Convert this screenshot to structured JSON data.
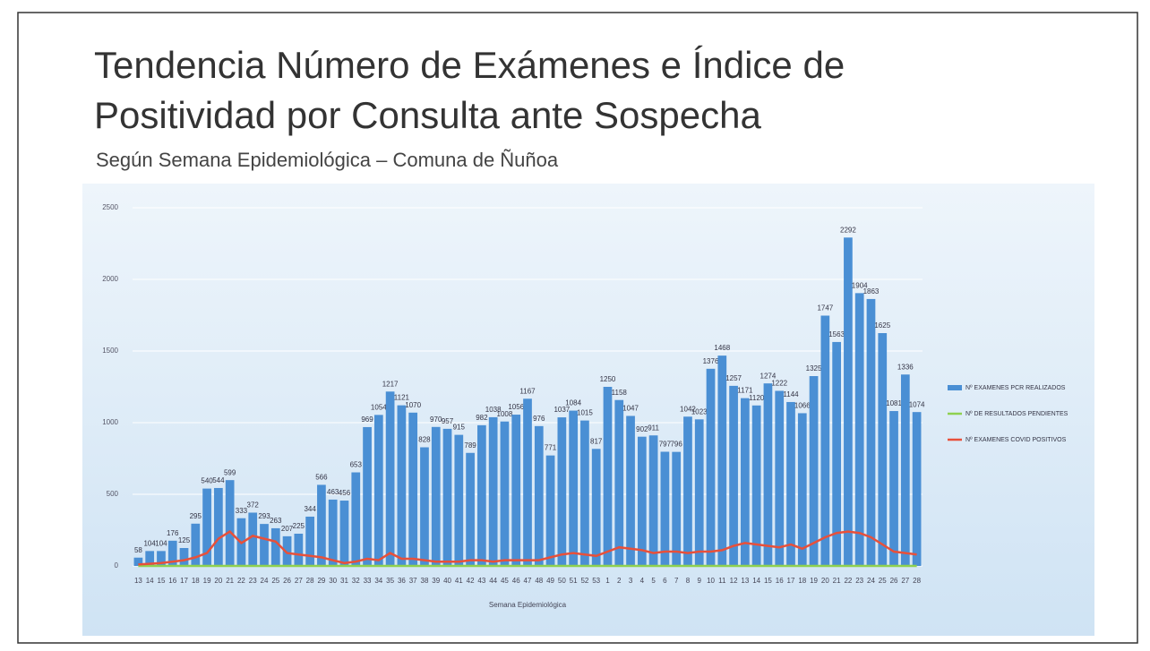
{
  "chart_data": {
    "type": "bar_line",
    "title_lines": [
      "Tendencia Número de Exámenes e Índice de",
      "Positividad por Consulta ante Sospecha"
    ],
    "subtitle": "Según Semana Epidemiológica – Comuna de Ñuñoa",
    "xlabel": "Semana Epidemiológica",
    "categories": [
      "13",
      "14",
      "15",
      "16",
      "17",
      "18",
      "19",
      "20",
      "21",
      "22",
      "23",
      "24",
      "25",
      "26",
      "27",
      "28",
      "29",
      "30",
      "31",
      "32",
      "33",
      "34",
      "35",
      "36",
      "37",
      "38",
      "39",
      "40",
      "41",
      "42",
      "43",
      "44",
      "45",
      "46",
      "47",
      "48",
      "49",
      "50",
      "51",
      "52",
      "53",
      "1",
      "2",
      "3",
      "4",
      "5",
      "6",
      "7",
      "8",
      "9",
      "10",
      "11",
      "12",
      "13",
      "14",
      "15",
      "16",
      "17",
      "18",
      "19",
      "20",
      "21",
      "22",
      "23",
      "24",
      "25",
      "26",
      "27",
      "28"
    ],
    "series": [
      {
        "name": "Nº EXAMENES PCR REALIZADOS",
        "color": "#4a8fd4",
        "kind": "bar",
        "values": [
          58,
          104,
          104,
          176,
          125,
          295,
          540,
          544,
          599,
          333,
          372,
          293,
          263,
          207,
          225,
          344,
          566,
          463,
          456,
          653,
          969,
          1054,
          1217,
          1121,
          1070,
          828,
          970,
          957,
          915,
          789,
          982,
          1038,
          1008,
          1056,
          1167,
          976,
          771,
          1037,
          1084,
          1015,
          817,
          1250,
          1158,
          1047,
          902,
          911,
          797,
          796,
          1042,
          1023,
          1376,
          1468,
          1257,
          1171,
          1120,
          1274,
          1222,
          1144,
          1066,
          1325,
          1747,
          1563,
          2292,
          1904,
          1863,
          1625,
          1081,
          1336,
          1074
        ]
      },
      {
        "name": "Nº DE RESULTADOS PENDIENTES",
        "color": "#8fd14f",
        "kind": "line",
        "values": [
          0,
          0,
          0,
          0,
          0,
          0,
          0,
          0,
          0,
          0,
          0,
          0,
          0,
          0,
          0,
          0,
          0,
          0,
          0,
          0,
          0,
          0,
          0,
          0,
          0,
          0,
          0,
          0,
          0,
          0,
          0,
          0,
          0,
          0,
          0,
          0,
          0,
          0,
          0,
          0,
          0,
          0,
          0,
          0,
          0,
          0,
          0,
          0,
          0,
          0,
          0,
          0,
          0,
          0,
          0,
          0,
          0,
          0,
          0,
          0,
          0,
          0,
          0,
          0,
          0,
          0,
          0,
          0,
          0
        ]
      },
      {
        "name": "Nº EXAMENES COVID POSITIVOS",
        "color": "#e8503a",
        "kind": "line",
        "values": [
          10,
          15,
          20,
          30,
          40,
          60,
          90,
          190,
          240,
          160,
          210,
          190,
          170,
          90,
          80,
          70,
          60,
          40,
          20,
          30,
          50,
          40,
          90,
          50,
          50,
          40,
          30,
          30,
          30,
          40,
          40,
          30,
          40,
          40,
          40,
          40,
          60,
          80,
          90,
          80,
          70,
          100,
          130,
          120,
          110,
          90,
          100,
          100,
          90,
          100,
          100,
          110,
          140,
          160,
          150,
          140,
          130,
          150,
          120,
          160,
          200,
          230,
          240,
          230,
          200,
          150,
          100,
          90,
          80
        ]
      }
    ],
    "ylim": [
      0,
      2500
    ],
    "yticks": [
      0,
      500,
      1000,
      1500,
      2000,
      2500
    ],
    "grid": true
  }
}
